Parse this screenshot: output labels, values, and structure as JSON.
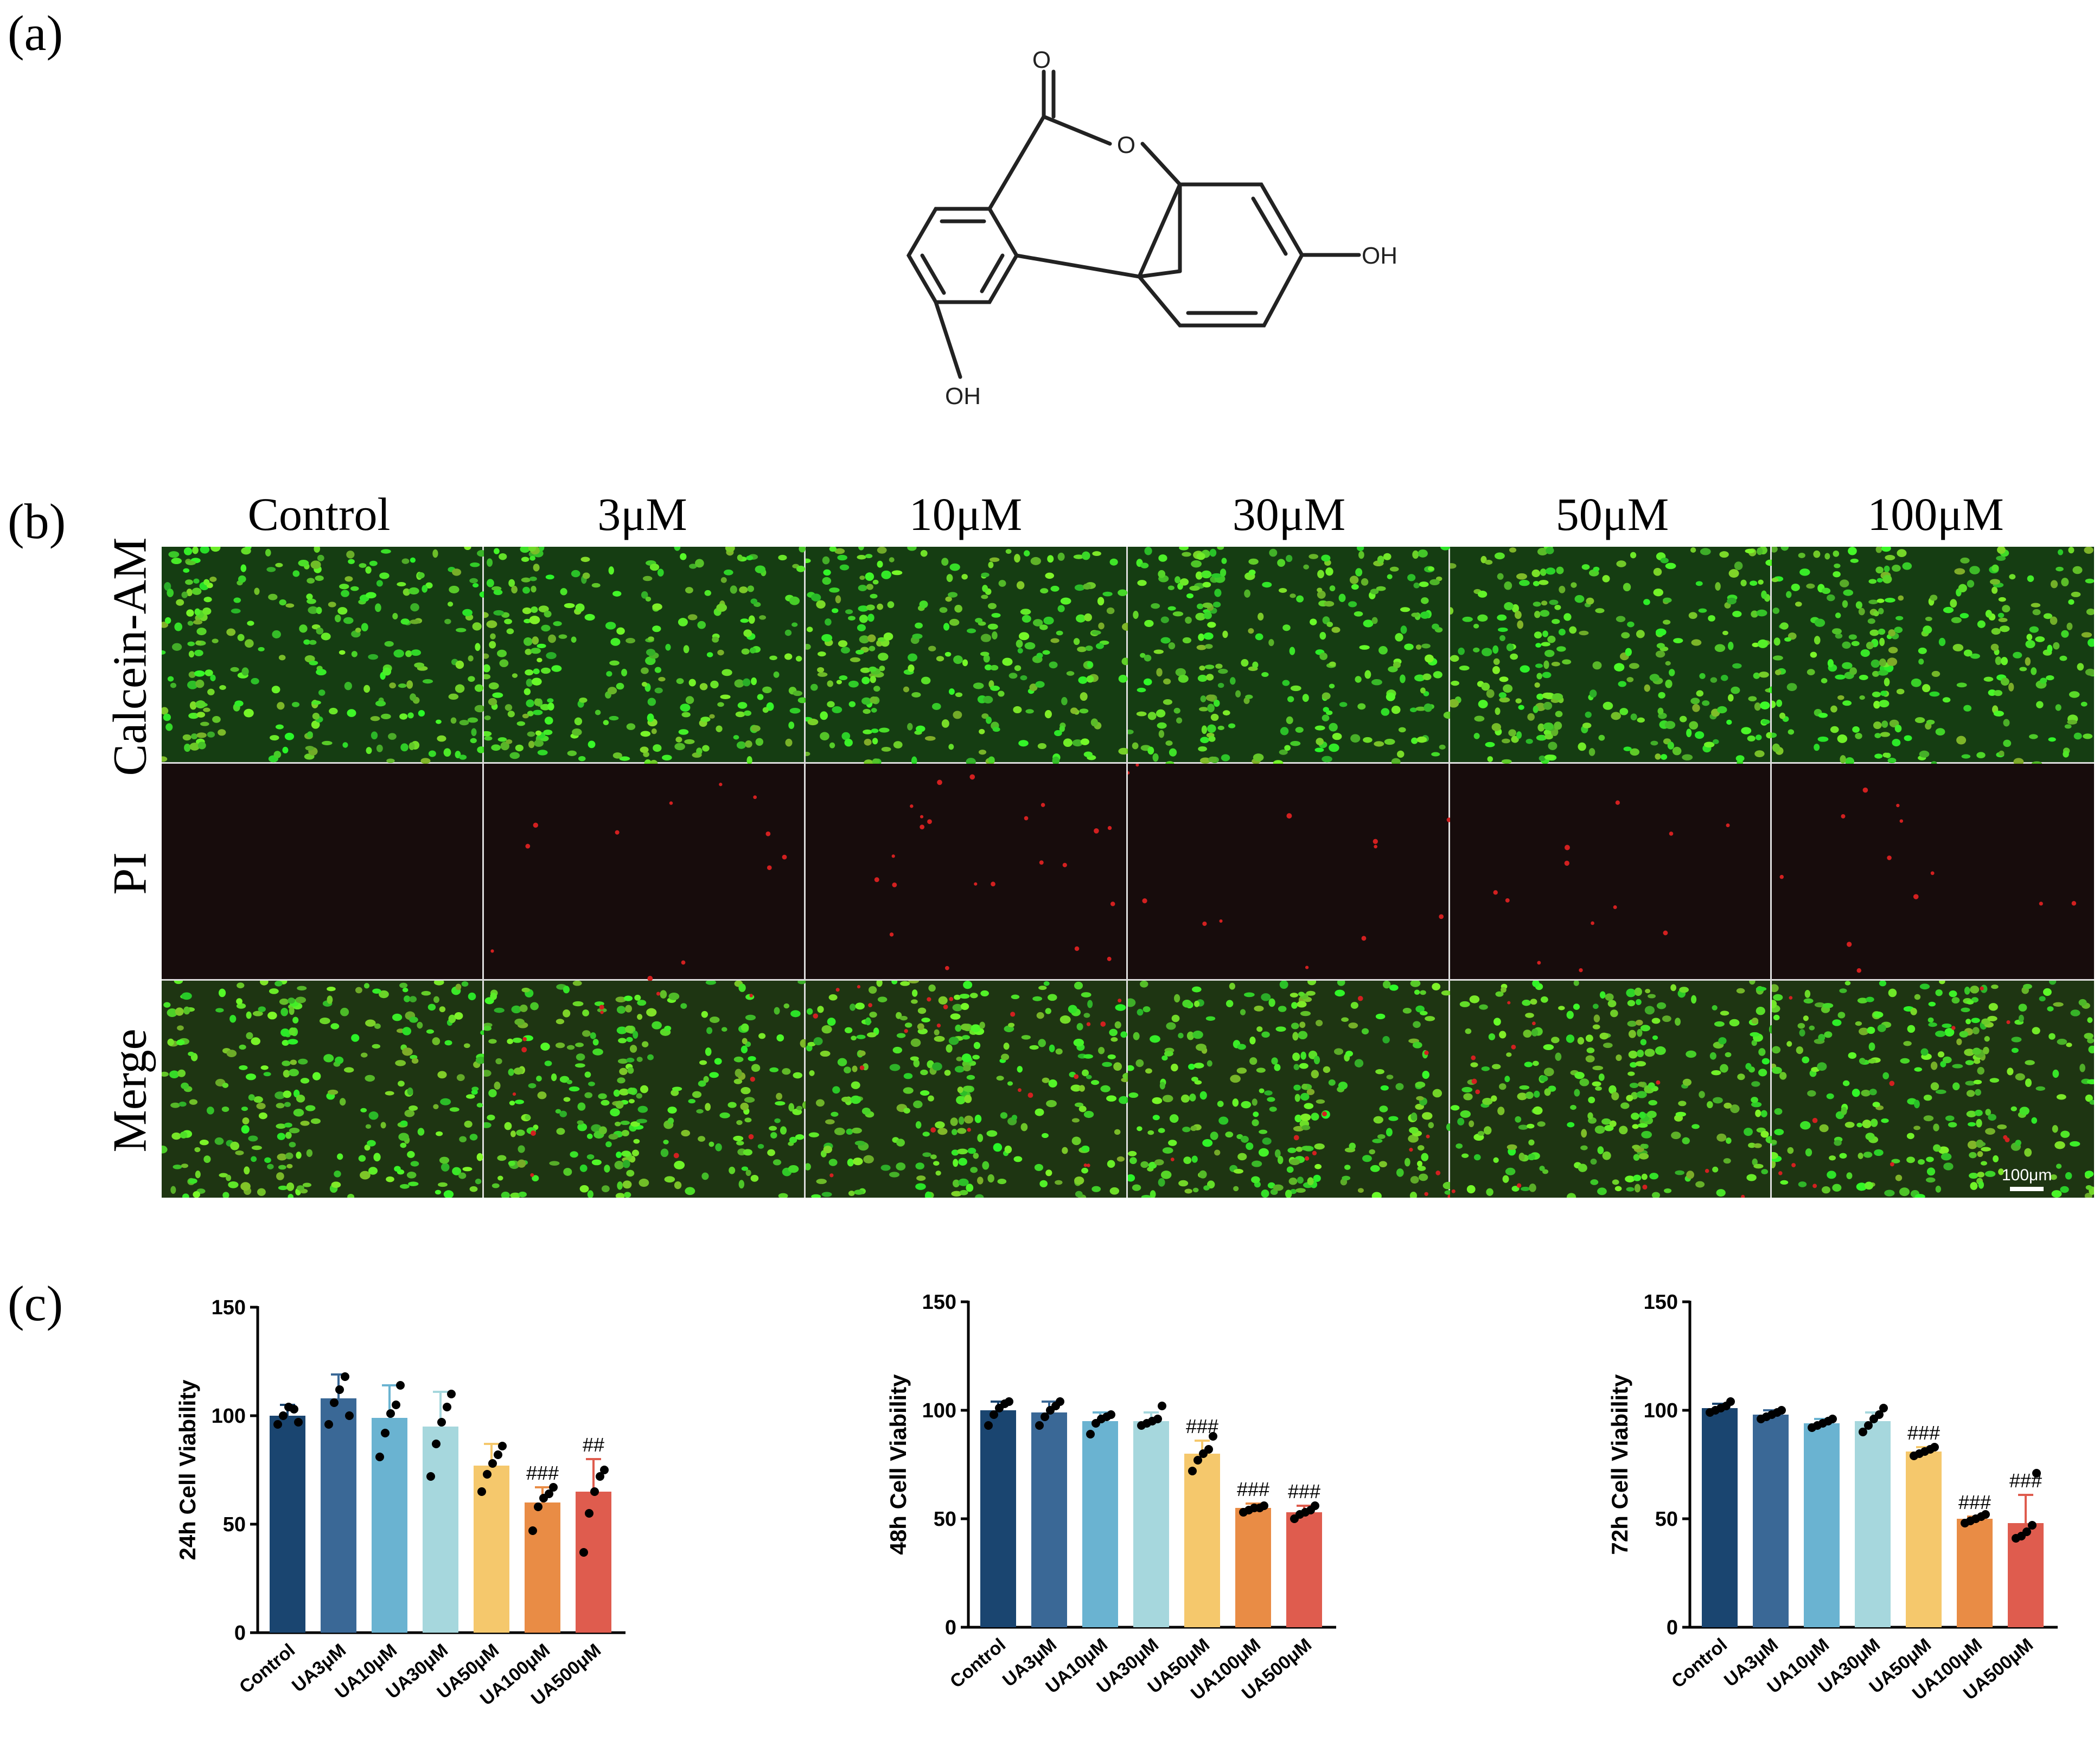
{
  "panel_a": {
    "label": "(a)",
    "atoms": {
      "carbonyl_o": "O",
      "ring_o": "O",
      "oh_right": "OH",
      "oh_bottom": "OH"
    }
  },
  "panel_b": {
    "label": "(b)",
    "columns": [
      "Control",
      "3μM",
      "10μM",
      "30μM",
      "50μM",
      "100μM"
    ],
    "rows": [
      "Calcein-AM",
      "PI",
      "Merge"
    ],
    "scale_bar": "100μm"
  },
  "panel_c": {
    "label": "(c)"
  },
  "chart_data": [
    {
      "type": "bar",
      "ylabel": "24h Cell Viability",
      "ylim": [
        0,
        150
      ],
      "yticks": [
        0,
        50,
        100,
        150
      ],
      "categories": [
        "Control",
        "UA3μM",
        "UA10μM",
        "UA30μM",
        "UA50μM",
        "UA100μM",
        "UA500μM"
      ],
      "values": [
        100,
        108,
        99,
        95,
        77,
        60,
        65
      ],
      "errors": [
        5,
        11,
        15,
        16,
        10,
        7,
        15
      ],
      "points": [
        [
          96,
          100,
          104,
          103,
          97
        ],
        [
          96,
          106,
          112,
          118,
          100
        ],
        [
          81,
          92,
          101,
          105,
          114
        ],
        [
          72,
          87,
          97,
          104,
          110
        ],
        [
          65,
          73,
          78,
          82,
          86
        ],
        [
          47,
          58,
          62,
          64,
          67
        ],
        [
          37,
          55,
          65,
          72,
          75
        ]
      ],
      "annotations": [
        "",
        "",
        "",
        "",
        "",
        "###",
        "##"
      ],
      "colors": [
        "#1a4570",
        "#3a6896",
        "#6ab3d1",
        "#a6d7dd",
        "#f5c86c",
        "#e98c45",
        "#df5c4e"
      ]
    },
    {
      "type": "bar",
      "ylabel": "48h Cell Viability",
      "ylim": [
        0,
        150
      ],
      "yticks": [
        0,
        50,
        100,
        150
      ],
      "categories": [
        "Control",
        "UA3μM",
        "UA10μM",
        "UA30μM",
        "UA50μM",
        "UA100μM",
        "UA500μM"
      ],
      "values": [
        100,
        99,
        95,
        95,
        80,
        55,
        53
      ],
      "errors": [
        4,
        5,
        4,
        4,
        6,
        2,
        3
      ],
      "points": [
        [
          93,
          98,
          101,
          103,
          104
        ],
        [
          93,
          97,
          100,
          102,
          104
        ],
        [
          89,
          94,
          96,
          97,
          98
        ],
        [
          93,
          94,
          95,
          96,
          102
        ],
        [
          72,
          77,
          80,
          82,
          88
        ],
        [
          53,
          54,
          55,
          55,
          56
        ],
        [
          50,
          52,
          53,
          54,
          56
        ]
      ],
      "annotations": [
        "",
        "",
        "",
        "",
        "###",
        "###",
        "###"
      ],
      "colors": [
        "#1a4570",
        "#3a6896",
        "#6ab3d1",
        "#a6d7dd",
        "#f5c86c",
        "#e98c45",
        "#df5c4e"
      ]
    },
    {
      "type": "bar",
      "ylabel": "72h Cell Viability",
      "ylim": [
        0,
        150
      ],
      "yticks": [
        0,
        50,
        100,
        150
      ],
      "categories": [
        "Control",
        "UA3μM",
        "UA10μM",
        "UA30μM",
        "UA50μM",
        "UA100μM",
        "UA500μM"
      ],
      "values": [
        101,
        98,
        94,
        95,
        81,
        50,
        48
      ],
      "errors": [
        2,
        2,
        2,
        4,
        2,
        1,
        13
      ],
      "points": [
        [
          99,
          100,
          101,
          102,
          104
        ],
        [
          96,
          97,
          98,
          99,
          100
        ],
        [
          92,
          93,
          94,
          95,
          96
        ],
        [
          90,
          93,
          96,
          98,
          101
        ],
        [
          79,
          80,
          81,
          82,
          83
        ],
        [
          48,
          49,
          50,
          51,
          52
        ],
        [
          41,
          42,
          44,
          47,
          71
        ]
      ],
      "annotations": [
        "",
        "",
        "",
        "",
        "###",
        "###",
        "###"
      ],
      "colors": [
        "#1a4570",
        "#3a6896",
        "#6ab3d1",
        "#a6d7dd",
        "#f5c86c",
        "#e98c45",
        "#df5c4e"
      ]
    }
  ]
}
